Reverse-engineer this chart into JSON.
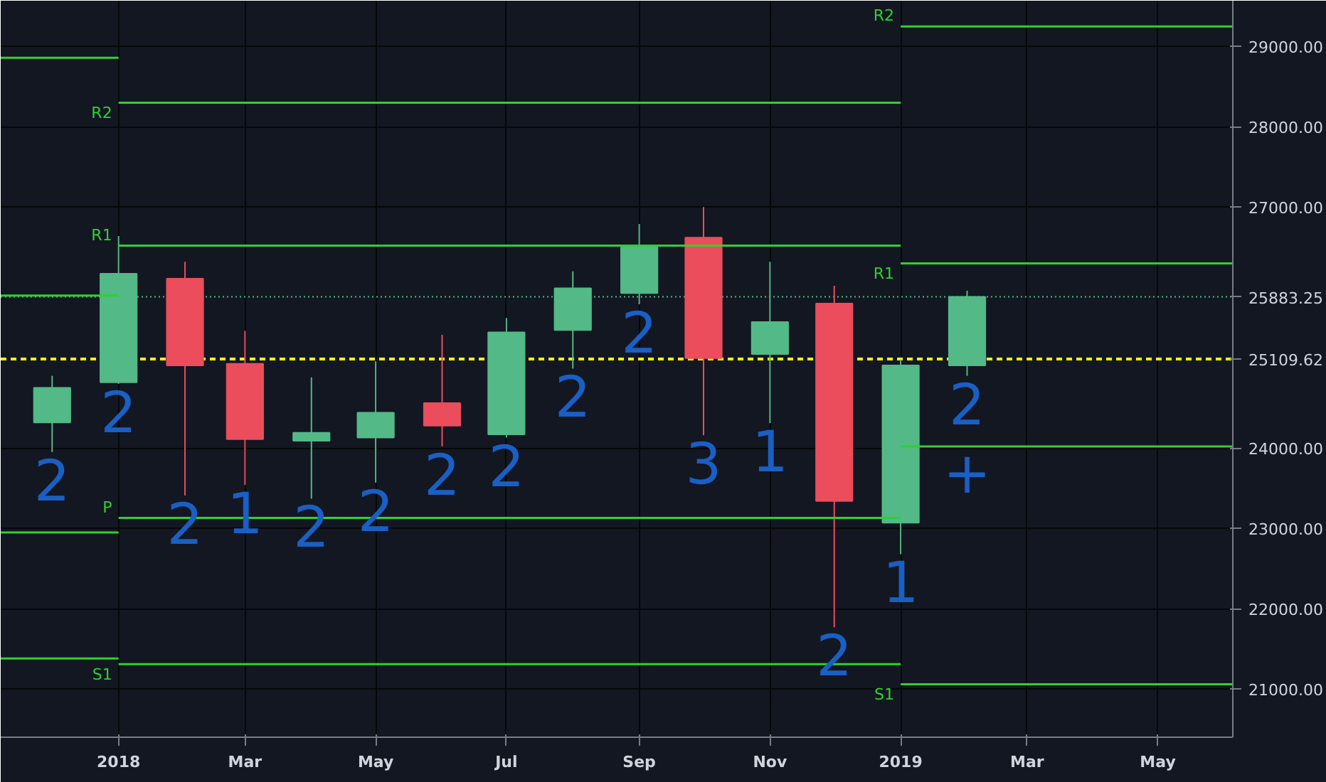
{
  "chart_data": {
    "type": "candlestick",
    "x": [
      "2017-12",
      "2018-01",
      "2018-02",
      "2018-03",
      "2018-04",
      "2018-05",
      "2018-06",
      "2018-07",
      "2018-08",
      "2018-09",
      "2018-10",
      "2018-11",
      "2018-12",
      "2019-01",
      "2019-02"
    ],
    "ohlc": [
      [
        24320,
        24900,
        23950,
        24750
      ],
      [
        24820,
        26640,
        24800,
        26170
      ],
      [
        26110,
        26320,
        23410,
        25030
      ],
      [
        25050,
        25460,
        23540,
        24110
      ],
      [
        24090,
        24880,
        23370,
        24190
      ],
      [
        24130,
        25080,
        23570,
        24440
      ],
      [
        24560,
        25410,
        24020,
        24280
      ],
      [
        24170,
        25620,
        24130,
        25440
      ],
      [
        25470,
        26200,
        24990,
        25990
      ],
      [
        25930,
        26790,
        25790,
        26500
      ],
      [
        26620,
        27000,
        24160,
        25120
      ],
      [
        25170,
        26320,
        24310,
        25570
      ],
      [
        25800,
        26020,
        21770,
        23340
      ],
      [
        23070,
        25100,
        22680,
        25030
      ],
      [
        25030,
        25960,
        24900,
        25883.25
      ]
    ],
    "colors": [
      "#53b987",
      "#53b987",
      "#eb4d5c",
      "#eb4d5c",
      "#53b987",
      "#53b987",
      "#eb4d5c",
      "#53b987",
      "#53b987",
      "#53b987",
      "#eb4d5c",
      "#53b987",
      "#eb4d5c",
      "#53b987",
      "#53b987"
    ],
    "series": [
      {
        "type": "line",
        "color": "#2fd12f",
        "x": [
          "2017-11-07",
          "2018-01"
        ],
        "values": [
          28860,
          28860
        ]
      },
      {
        "type": "line",
        "color": "#2fd12f",
        "x": [
          "2017-11-07",
          "2018-01"
        ],
        "values": [
          25900,
          25900
        ]
      },
      {
        "type": "line",
        "color": "#2fd12f",
        "x": [
          "2017-11-07",
          "2018-01"
        ],
        "values": [
          22950,
          22950
        ]
      },
      {
        "type": "line",
        "color": "#2fd12f",
        "x": [
          "2017-11-07",
          "2018-01"
        ],
        "values": [
          21380,
          21380
        ]
      },
      {
        "type": "line",
        "name": "R2",
        "color": "#2fd12f",
        "x": [
          "2018-01",
          "2019-01"
        ],
        "values": [
          28300,
          28300
        ]
      },
      {
        "type": "line",
        "name": "R1",
        "color": "#2fd12f",
        "x": [
          "2018-01",
          "2019-01"
        ],
        "values": [
          26520,
          26520
        ]
      },
      {
        "type": "line",
        "name": "P",
        "color": "#2fd12f",
        "x": [
          "2018-01",
          "2019-01"
        ],
        "values": [
          23130,
          23130
        ]
      },
      {
        "type": "line",
        "name": "S1",
        "color": "#2fd12f",
        "x": [
          "2018-01",
          "2019-01"
        ],
        "values": [
          21310,
          21310
        ]
      },
      {
        "type": "line",
        "name": "R2",
        "color": "#2fd12f",
        "x": [
          "2019-01",
          "2019-06-05"
        ],
        "values": [
          29250,
          29250
        ]
      },
      {
        "type": "line",
        "name": "R1",
        "color": "#2fd12f",
        "x": [
          "2019-01",
          "2019-06-05"
        ],
        "values": [
          26300,
          26300
        ]
      },
      {
        "type": "line",
        "color": "#2fd12f",
        "x": [
          "2019-01",
          "2019-06-05"
        ],
        "values": [
          24020,
          24020
        ]
      },
      {
        "type": "line",
        "name": "S1",
        "color": "#2fd12f",
        "x": [
          "2019-01",
          "2019-06-05"
        ],
        "values": [
          21060,
          21060
        ]
      }
    ],
    "ref_lines": [
      {
        "axis": "y",
        "value": 25109.62,
        "label": "25109.62",
        "color": "#ffff00",
        "line_style": "dashed"
      },
      {
        "axis": "y",
        "value": 25883.25,
        "label": "25883.25",
        "color": "#53b987",
        "line_style": "dotted"
      }
    ],
    "annotations": [
      "2",
      "2",
      "2",
      "1",
      "2",
      "2",
      "2",
      "2",
      "2",
      "2",
      "3",
      "1",
      "2",
      "1",
      "2",
      "+"
    ],
    "xlim": [
      "2017-11-07",
      "2019-06-05"
    ],
    "xticks": [
      {
        "value": "2018-01",
        "label": "2018"
      },
      {
        "value": "2018-03",
        "label": "Mar"
      },
      {
        "value": "2018-05",
        "label": "May"
      },
      {
        "value": "2018-07",
        "label": "Jul"
      },
      {
        "value": "2018-09",
        "label": "Sep"
      },
      {
        "value": "2018-11",
        "label": "Nov"
      },
      {
        "value": "2019-01",
        "label": "2019"
      },
      {
        "value": "2019-03",
        "label": "Mar"
      },
      {
        "value": "2019-05",
        "label": "May"
      }
    ],
    "ylim": [
      20400,
      29570
    ],
    "yticks": [
      {
        "value": 21000,
        "label": "21000.00"
      },
      {
        "value": 22000,
        "label": "22000.00"
      },
      {
        "value": 23000,
        "label": "23000.00"
      },
      {
        "value": 24000,
        "label": "24000.00"
      },
      {
        "value": 27000,
        "label": "27000.00"
      },
      {
        "value": 28000,
        "label": "28000.00"
      },
      {
        "value": 29000,
        "label": "29000.00"
      }
    ],
    "grid": true
  }
}
